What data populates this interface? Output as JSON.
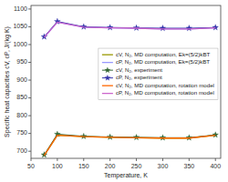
{
  "chart_data": {
    "type": "line",
    "x_label": "Temperature, K",
    "y_label": "Specific heat capacities cV, cP, J/(kg K)",
    "x": [
      75,
      100,
      150,
      200,
      250,
      300,
      350,
      400
    ],
    "xlim": [
      50,
      410
    ],
    "ylim": [
      680,
      1110
    ],
    "xticks": [
      50,
      100,
      150,
      200,
      250,
      300,
      350,
      400
    ],
    "yticks": [
      700,
      750,
      800,
      850,
      900,
      950,
      1000,
      1050,
      1100
    ],
    "grid": false,
    "legend": "upper right",
    "series": [
      {
        "name": "cV, N₂, MD computation, Ek=(5/2)kBT",
        "color": "#999900",
        "values": [
          688,
          745,
          741,
          739,
          738,
          737,
          737,
          745
        ]
      },
      {
        "name": "cP, N₂, MD computation, Ek=(5/2)kBT",
        "color": "#9999ff",
        "values": [
          1020,
          1063,
          1049,
          1047,
          1046,
          1044,
          1044,
          1047
        ]
      },
      {
        "name": "cV, N₂, experiment",
        "color": "#336633",
        "marker": "star",
        "values": [
          690,
          748,
          742,
          740,
          739,
          738,
          738,
          746
        ]
      },
      {
        "name": "cP, N₂, experiment",
        "color": "#3333aa",
        "marker": "star",
        "values": [
          1022,
          1065,
          1050,
          1048,
          1047,
          1046,
          1046,
          1048
        ]
      },
      {
        "name": "cV, N₂, MD computation, rotation model",
        "color": "#ff6600",
        "values": [
          688,
          745,
          741,
          739,
          738,
          737,
          737,
          745
        ]
      },
      {
        "name": "cP, N₂, MD computation, rotation model",
        "color": "#cc66cc",
        "values": [
          1020,
          1063,
          1049,
          1047,
          1046,
          1044,
          1044,
          1047
        ]
      }
    ]
  }
}
